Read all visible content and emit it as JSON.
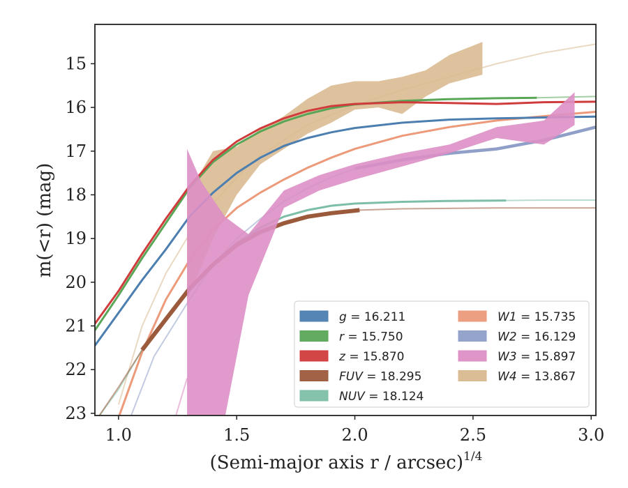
{
  "chart_data": {
    "type": "line",
    "xlabel": "(Semi-major axis r / arcsec)",
    "xlabel_sup": "1/4",
    "ylabel": "m(<r) (mag)",
    "xlim": [
      0.9,
      3.02
    ],
    "ylim": [
      23.05,
      14.1
    ],
    "y_inverted": true,
    "grid": false,
    "legend_placement": "lower-right",
    "x_ticks": [
      1.0,
      1.5,
      2.0,
      2.5,
      3.0
    ],
    "x_tick_labels": [
      "1.0",
      "1.5",
      "2.0",
      "2.5",
      "3.0"
    ],
    "y_ticks": [
      15,
      16,
      17,
      18,
      19,
      20,
      21,
      22,
      23
    ],
    "y_tick_labels": [
      "15",
      "16",
      "17",
      "18",
      "19",
      "20",
      "21",
      "22",
      "23"
    ],
    "series": [
      {
        "name": "g = 16.211",
        "band": "g",
        "value": "16.211",
        "color": "#4c7eb0",
        "x": [
          0.9,
          1.0,
          1.1,
          1.2,
          1.3,
          1.4,
          1.5,
          1.6,
          1.7,
          1.8,
          1.9,
          2.0,
          2.2,
          2.4,
          2.6,
          2.8,
          3.02
        ],
        "y": [
          21.45,
          20.7,
          19.95,
          19.25,
          18.5,
          17.95,
          17.5,
          17.15,
          16.88,
          16.7,
          16.57,
          16.47,
          16.35,
          16.28,
          16.25,
          16.23,
          16.21
        ],
        "solid_max_x": 3.02
      },
      {
        "name": "r = 15.750",
        "band": "r",
        "value": "15.750",
        "color": "#5aa657",
        "x": [
          0.9,
          1.0,
          1.1,
          1.2,
          1.3,
          1.4,
          1.5,
          1.6,
          1.7,
          1.8,
          1.9,
          2.0,
          2.2,
          2.4,
          2.6,
          2.77,
          3.02
        ],
        "y": [
          21.1,
          20.3,
          19.45,
          18.65,
          17.85,
          17.25,
          16.85,
          16.55,
          16.32,
          16.15,
          16.02,
          15.93,
          15.85,
          15.81,
          15.79,
          15.78,
          15.75
        ],
        "solid_max_x": 2.77
      },
      {
        "name": "z = 15.870",
        "band": "z",
        "value": "15.870",
        "color": "#d03c3c",
        "x": [
          0.9,
          1.0,
          1.1,
          1.2,
          1.3,
          1.4,
          1.5,
          1.6,
          1.7,
          1.8,
          1.9,
          2.0,
          2.2,
          2.4,
          2.6,
          2.8,
          3.02
        ],
        "y": [
          20.95,
          20.2,
          19.35,
          18.55,
          17.8,
          17.2,
          16.78,
          16.48,
          16.25,
          16.08,
          15.97,
          15.92,
          15.88,
          15.9,
          15.92,
          15.88,
          15.87
        ],
        "solid_max_x": 3.02
      },
      {
        "name": "FUV = 18.295",
        "band": "FUV",
        "value": "18.295",
        "color": "#9c5a3c",
        "x": [
          0.9,
          1.0,
          1.1,
          1.2,
          1.3,
          1.4,
          1.5,
          1.6,
          1.7,
          1.8,
          1.9,
          2.02,
          2.2,
          2.4,
          2.6,
          2.8,
          3.02
        ],
        "y": [
          23.2,
          22.4,
          21.55,
          20.85,
          20.15,
          19.6,
          19.15,
          18.85,
          18.65,
          18.5,
          18.42,
          18.35,
          18.32,
          18.31,
          18.3,
          18.3,
          18.3
        ],
        "solid_min_x": 1.1,
        "solid_max_x": 2.02
      },
      {
        "name": "NUV = 18.124",
        "band": "NUV",
        "value": "18.124",
        "color": "#7dbfa6",
        "x": [
          0.9,
          1.0,
          1.1,
          1.2,
          1.3,
          1.4,
          1.5,
          1.6,
          1.7,
          1.8,
          1.9,
          2.0,
          2.2,
          2.4,
          2.64,
          2.8,
          3.02
        ],
        "y": [
          23.2,
          22.45,
          21.55,
          20.85,
          20.2,
          19.6,
          19.1,
          18.75,
          18.5,
          18.35,
          18.25,
          18.2,
          18.16,
          18.14,
          18.13,
          18.12,
          18.12
        ],
        "solid_min_x": 1.1,
        "solid_max_x": 2.64
      },
      {
        "name": "W1 = 15.735",
        "band": "W1",
        "value": "15.735",
        "color": "#ec9a7a",
        "x": [
          1.0,
          1.1,
          1.2,
          1.3,
          1.4,
          1.5,
          1.6,
          1.7,
          1.8,
          1.9,
          2.0,
          2.2,
          2.4,
          2.6,
          2.8,
          3.02
        ],
        "y": [
          23.1,
          21.6,
          20.4,
          19.5,
          18.8,
          18.3,
          17.95,
          17.65,
          17.38,
          17.15,
          16.95,
          16.65,
          16.45,
          16.3,
          16.2,
          16.1
        ],
        "solid_max_x": 3.02
      },
      {
        "name": "W2 = 16.129",
        "band": "W2",
        "value": "16.129",
        "color": "#8f9fc8",
        "x": [
          1.05,
          1.15,
          1.3,
          1.4,
          1.5,
          1.6,
          1.7,
          1.8,
          1.9,
          2.0,
          2.2,
          2.4,
          2.6,
          2.8,
          3.02
        ],
        "y": [
          23.1,
          21.7,
          20.4,
          19.6,
          19.0,
          18.55,
          18.15,
          17.85,
          17.6,
          17.4,
          17.2,
          17.05,
          16.95,
          16.75,
          16.45
        ],
        "solid_min_x": 2.0,
        "solid_max_x": 3.02
      },
      {
        "name": "W3 = 15.897",
        "band": "W3",
        "value": "15.897",
        "color": "#dd8fc5",
        "band_min_x": 1.29,
        "band_max_x": 2.93,
        "x": [
          1.29,
          1.35,
          1.45,
          1.55,
          1.7,
          1.85,
          2.0,
          2.2,
          2.4,
          2.6,
          2.8,
          2.93
        ],
        "y_upper": [
          16.95,
          17.7,
          18.5,
          18.9,
          17.9,
          17.55,
          17.3,
          17.05,
          16.85,
          16.45,
          16.3,
          15.65
        ],
        "y_lower": [
          23.1,
          23.1,
          23.1,
          20.3,
          18.3,
          17.9,
          17.65,
          17.35,
          17.05,
          16.7,
          16.85,
          16.4
        ],
        "tail_x": [
          1.24,
          1.29
        ],
        "tail_y": [
          23.1,
          22.2
        ]
      },
      {
        "name": "W4 = 13.867",
        "band": "W4",
        "value": "13.867",
        "color": "#d9b98f",
        "band_min_x": 1.29,
        "band_max_x": 2.54,
        "x": [
          1.29,
          1.4,
          1.5,
          1.6,
          1.7,
          1.8,
          1.9,
          2.0,
          2.1,
          2.2,
          2.3,
          2.4,
          2.54
        ],
        "y_upper": [
          18.0,
          17.0,
          16.9,
          16.5,
          16.2,
          15.8,
          15.5,
          15.4,
          15.4,
          15.3,
          15.15,
          14.8,
          14.5
        ],
        "y_lower": [
          20.4,
          19.0,
          18.0,
          17.3,
          16.95,
          16.6,
          16.35,
          16.05,
          16.0,
          16.15,
          15.75,
          15.45,
          15.25
        ],
        "tail_x": [
          1.0,
          1.1,
          1.2,
          1.3,
          1.4,
          1.5,
          1.6,
          1.8,
          2.0,
          2.2,
          2.4,
          2.6,
          2.8,
          3.02
        ],
        "tail_y": [
          22.8,
          21.0,
          19.8,
          18.9,
          18.2,
          17.6,
          17.1,
          16.4,
          15.95,
          15.6,
          15.3,
          15.0,
          14.75,
          14.55
        ]
      }
    ]
  }
}
